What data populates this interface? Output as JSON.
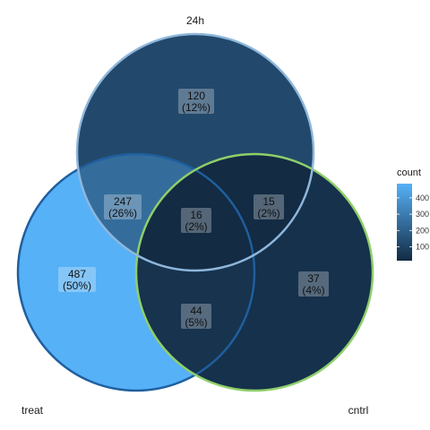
{
  "sets": [
    {
      "name": "24h",
      "stroke": "#8fb7dc"
    },
    {
      "name": "treat",
      "stroke": "#1f5f9e"
    },
    {
      "name": "cntrl",
      "stroke": "#8fcf6a"
    }
  ],
  "regions": [
    {
      "id": "24h-only",
      "count": "120",
      "percent": "(12%)",
      "value": 120
    },
    {
      "id": "24h-treat",
      "count": "247",
      "percent": "(26%)",
      "value": 247
    },
    {
      "id": "all-three",
      "count": "16",
      "percent": "(2%)",
      "value": 16
    },
    {
      "id": "24h-cntrl",
      "count": "15",
      "percent": "(2%)",
      "value": 15
    },
    {
      "id": "treat-only",
      "count": "487",
      "percent": "(50%)",
      "value": 487
    },
    {
      "id": "treat-cntrl",
      "count": "44",
      "percent": "(5%)",
      "value": 44
    },
    {
      "id": "cntrl-only",
      "count": "37",
      "percent": "(4%)",
      "value": 37
    }
  ],
  "legend": {
    "title": "count",
    "ticks": [
      "400",
      "300",
      "200",
      "100"
    ],
    "tick_values": [
      400,
      300,
      200,
      100
    ],
    "range": [
      15,
      487
    ],
    "color_low": "#132b43",
    "color_high": "#56b1f7"
  }
}
